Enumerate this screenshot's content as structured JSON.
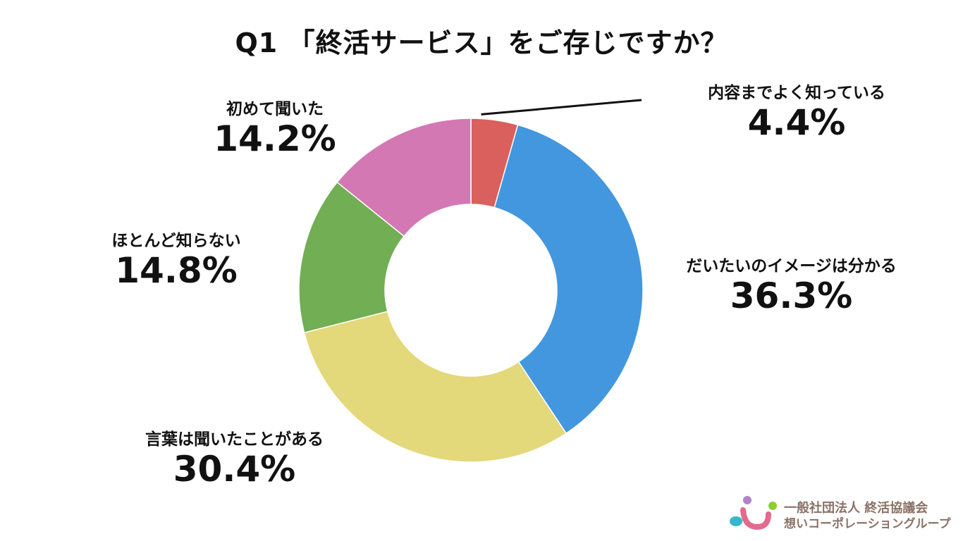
{
  "chart_data": {
    "type": "pie",
    "title": "Q1 「終活サービス」をご存じですか？",
    "donut": true,
    "categories": [
      "内容までよく知っている",
      "だいたいのイメージは分かる",
      "言葉は聞いたことがある",
      "ほとんど知らない",
      "初めて聞いた"
    ],
    "values": [
      4.4,
      36.3,
      30.4,
      14.8,
      14.2
    ],
    "value_labels": [
      "4.4%",
      "36.3%",
      "30.4%",
      "14.8%",
      "14.2%"
    ],
    "colors": [
      "#d9605c",
      "#4397de",
      "#e3d87a",
      "#71ae54",
      "#d378b3"
    ],
    "start_angle": "12 o'clock",
    "direction": "clockwise",
    "legend": "none"
  },
  "logo": {
    "line1": "一般社団法人 終活協議会",
    "line2": "想いコーポレーショングループ",
    "colors": [
      "#b084c8",
      "#8ccf2e",
      "#e26b8d",
      "#36b8c8"
    ]
  }
}
